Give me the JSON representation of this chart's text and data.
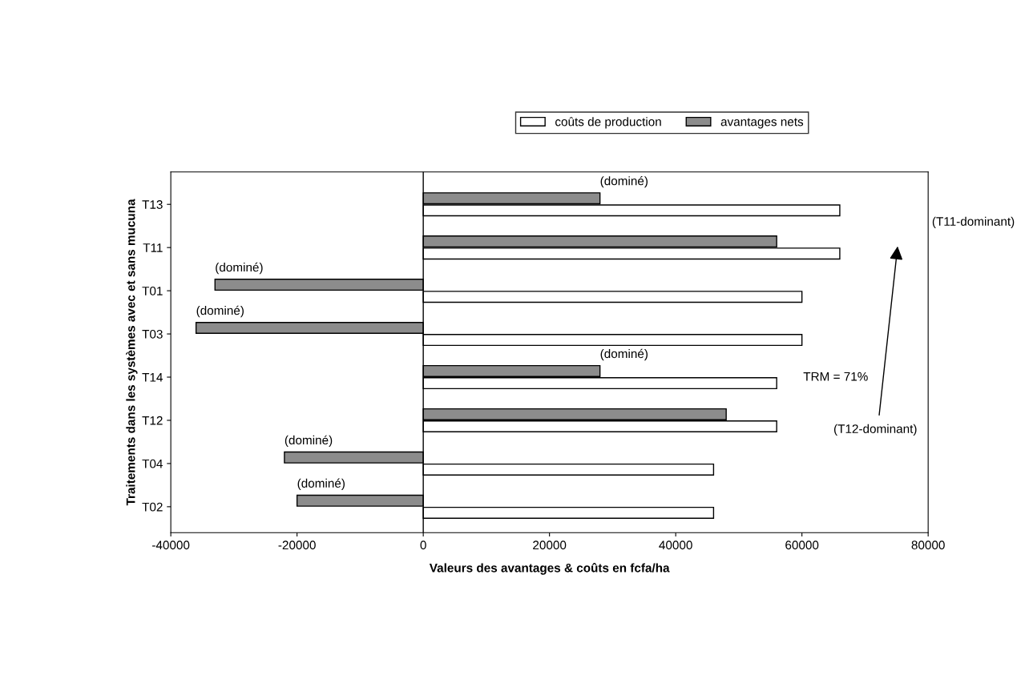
{
  "chart_data": {
    "type": "bar",
    "orientation": "horizontal",
    "categories": [
      "T13",
      "T11",
      "T01",
      "T03",
      "T14",
      "T12",
      "T04",
      "T02"
    ],
    "series": [
      {
        "name": "coûts de production",
        "color": "#ffffff",
        "values": [
          66000,
          66000,
          60000,
          60000,
          56000,
          56000,
          46000,
          46000
        ]
      },
      {
        "name": "avantages nets",
        "color": "#8c8c8c",
        "values": [
          28000,
          56000,
          -33000,
          -36000,
          28000,
          48000,
          -22000,
          -20000
        ]
      }
    ],
    "xlim": [
      -40000,
      80000
    ],
    "xticks": [
      -40000,
      -20000,
      0,
      20000,
      40000,
      60000,
      80000
    ],
    "xlabel": "Valeurs des avantages & coûts en fcfa/ha",
    "ylabel": "Traitements dans les systèmes avec et sans mucuna",
    "legend": "top right",
    "grid": false,
    "ref_lines": [
      {
        "axis": "x",
        "value": 0,
        "color": "#000000"
      }
    ],
    "annotations": [
      {
        "text": "(dominé)",
        "x": 28000,
        "y": "T13"
      },
      {
        "text": "(dominé)",
        "x": -33000,
        "y": "T01"
      },
      {
        "text": "(dominé)",
        "x": -36000,
        "y": "T03"
      },
      {
        "text": "(dominé)",
        "x": 28000,
        "y": "T14"
      },
      {
        "text": "(dominé)",
        "x": -22000,
        "y": "T04"
      },
      {
        "text": "(dominé)",
        "x": -20000,
        "y": "T02"
      },
      "(T11-dominant)",
      "(T12-dominant)",
      "TRM = 71%"
    ]
  }
}
